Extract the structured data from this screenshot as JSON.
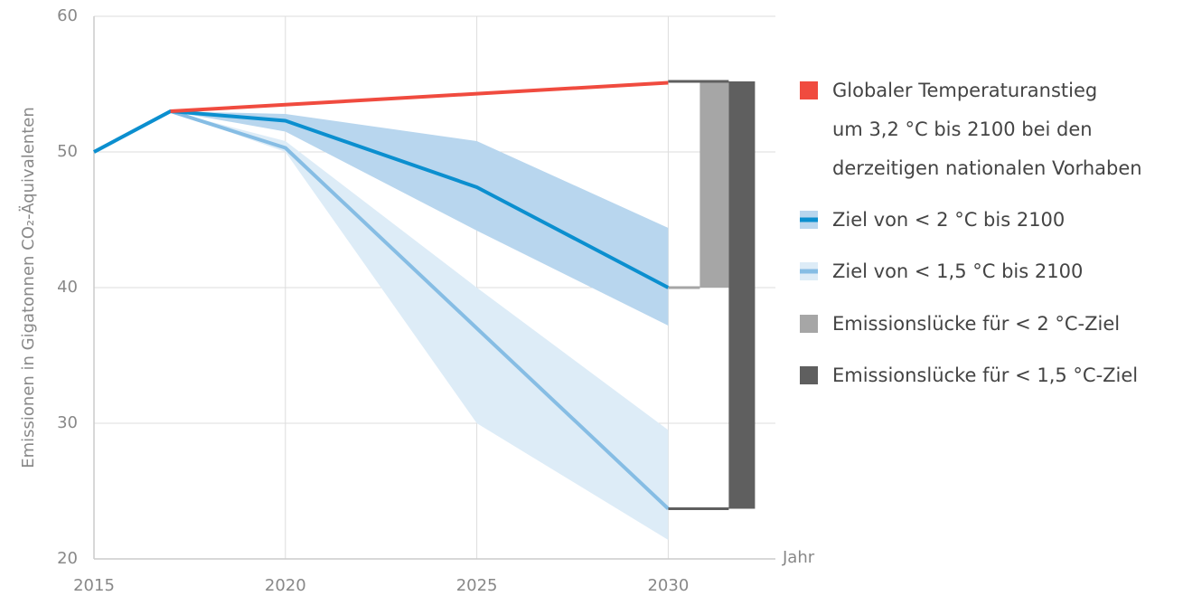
{
  "chart_data": {
    "type": "line",
    "ylabel": "Emissionen in Gigatonnen CO₂-Äquivalenten",
    "xlabel": "Jahr",
    "xlim": [
      2015,
      2032.8
    ],
    "xticks": [
      2015,
      2020,
      2025,
      2030
    ],
    "ylim": [
      20,
      60
    ],
    "yticks": [
      20,
      30,
      40,
      50,
      60
    ],
    "grid": true,
    "series": [
      {
        "name": "Globaler Temperaturanstieg\num 3,2 °C bis 2100 bei den\nderzeitigen nationalen Vorhaben",
        "color": "#f04b3f",
        "x": [
          2017,
          2030
        ],
        "values": [
          53,
          55.1
        ]
      },
      {
        "name": "Ziel von < 2 °C bis 2100",
        "color": "#0b8fcf",
        "band_color": "#b8d6ee",
        "x": [
          2015,
          2017,
          2020,
          2025,
          2030
        ],
        "values": [
          50,
          53,
          52.3,
          47.4,
          40
        ],
        "band_low": [
          null,
          53,
          51.5,
          44.2,
          37.2
        ],
        "band_high": [
          null,
          53,
          52.8,
          50.8,
          44.4
        ]
      },
      {
        "name": "Ziel von < 1,5 °C bis 2100",
        "color": "#86bde4",
        "band_color": "#ddecf7",
        "x": [
          2015,
          2017,
          2020,
          2025,
          2030
        ],
        "values": [
          50,
          53,
          50.3,
          37,
          23.7
        ],
        "band_low": [
          null,
          53,
          50,
          30,
          21.4
        ],
        "band_high": [
          null,
          53,
          50.8,
          40,
          29.5
        ]
      }
    ],
    "gaps": [
      {
        "name": "Emissionslücke für < 2 °C-Ziel",
        "color": "#a6a6a6",
        "range": [
          40,
          55.2
        ]
      },
      {
        "name": "Emissionslücke für < 1,5 °C-Ziel",
        "color": "#5f5f5f",
        "range": [
          23.7,
          55.2
        ]
      }
    ]
  }
}
